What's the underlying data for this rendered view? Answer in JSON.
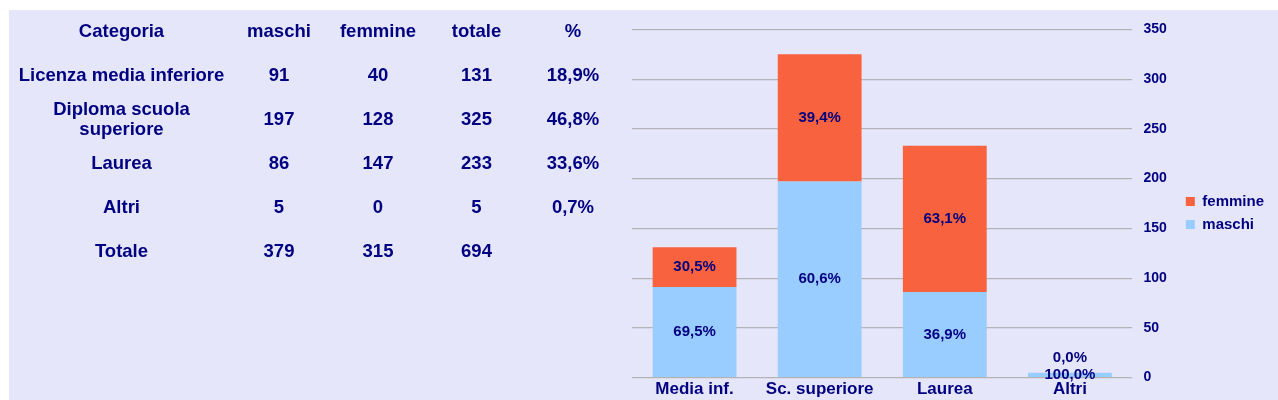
{
  "chart_data": [
    {
      "type": "other",
      "xlabel": "Categoria",
      "categories": [
        "Licenza media inferiore",
        "Diploma scuola superiore",
        "Laurea",
        "Altri",
        "Totale"
      ],
      "data_labels": true,
      "series": [
        {
          "name": "maschi",
          "values": [
            91,
            197,
            86,
            5,
            379
          ]
        },
        {
          "name": "femmine",
          "values": [
            40,
            128,
            147,
            0,
            315
          ]
        },
        {
          "name": "totale",
          "values": [
            131,
            325,
            233,
            5,
            694
          ]
        },
        {
          "name": "%",
          "values": [
            18.9,
            46.8,
            33.6,
            0.7,
            null
          ],
          "value_labels": [
            "18,9%",
            "46,8%",
            "33,6%",
            "0,7%",
            null
          ]
        }
      ]
    },
    {
      "type": "bar",
      "stacked": true,
      "categories": [
        "Media inf.",
        "Sc. superiore",
        "Laurea",
        "Altri"
      ],
      "series": [
        {
          "name": "maschi",
          "color": "#99ccff",
          "values": [
            91,
            197,
            86,
            5
          ]
        },
        {
          "name": "femmine",
          "color": "#f9623e",
          "values": [
            40,
            128,
            147,
            0
          ]
        }
      ],
      "annotations": [
        "69,5%",
        "30,5%",
        "60,6%",
        "39,4%",
        "36,9%",
        "63,1%",
        "100,0%",
        "0,0%"
      ],
      "ylim": [
        0,
        350
      ],
      "yticks": [
        0,
        50,
        100,
        150,
        200,
        250,
        300,
        350
      ],
      "grid": "y",
      "legend": "right"
    }
  ]
}
